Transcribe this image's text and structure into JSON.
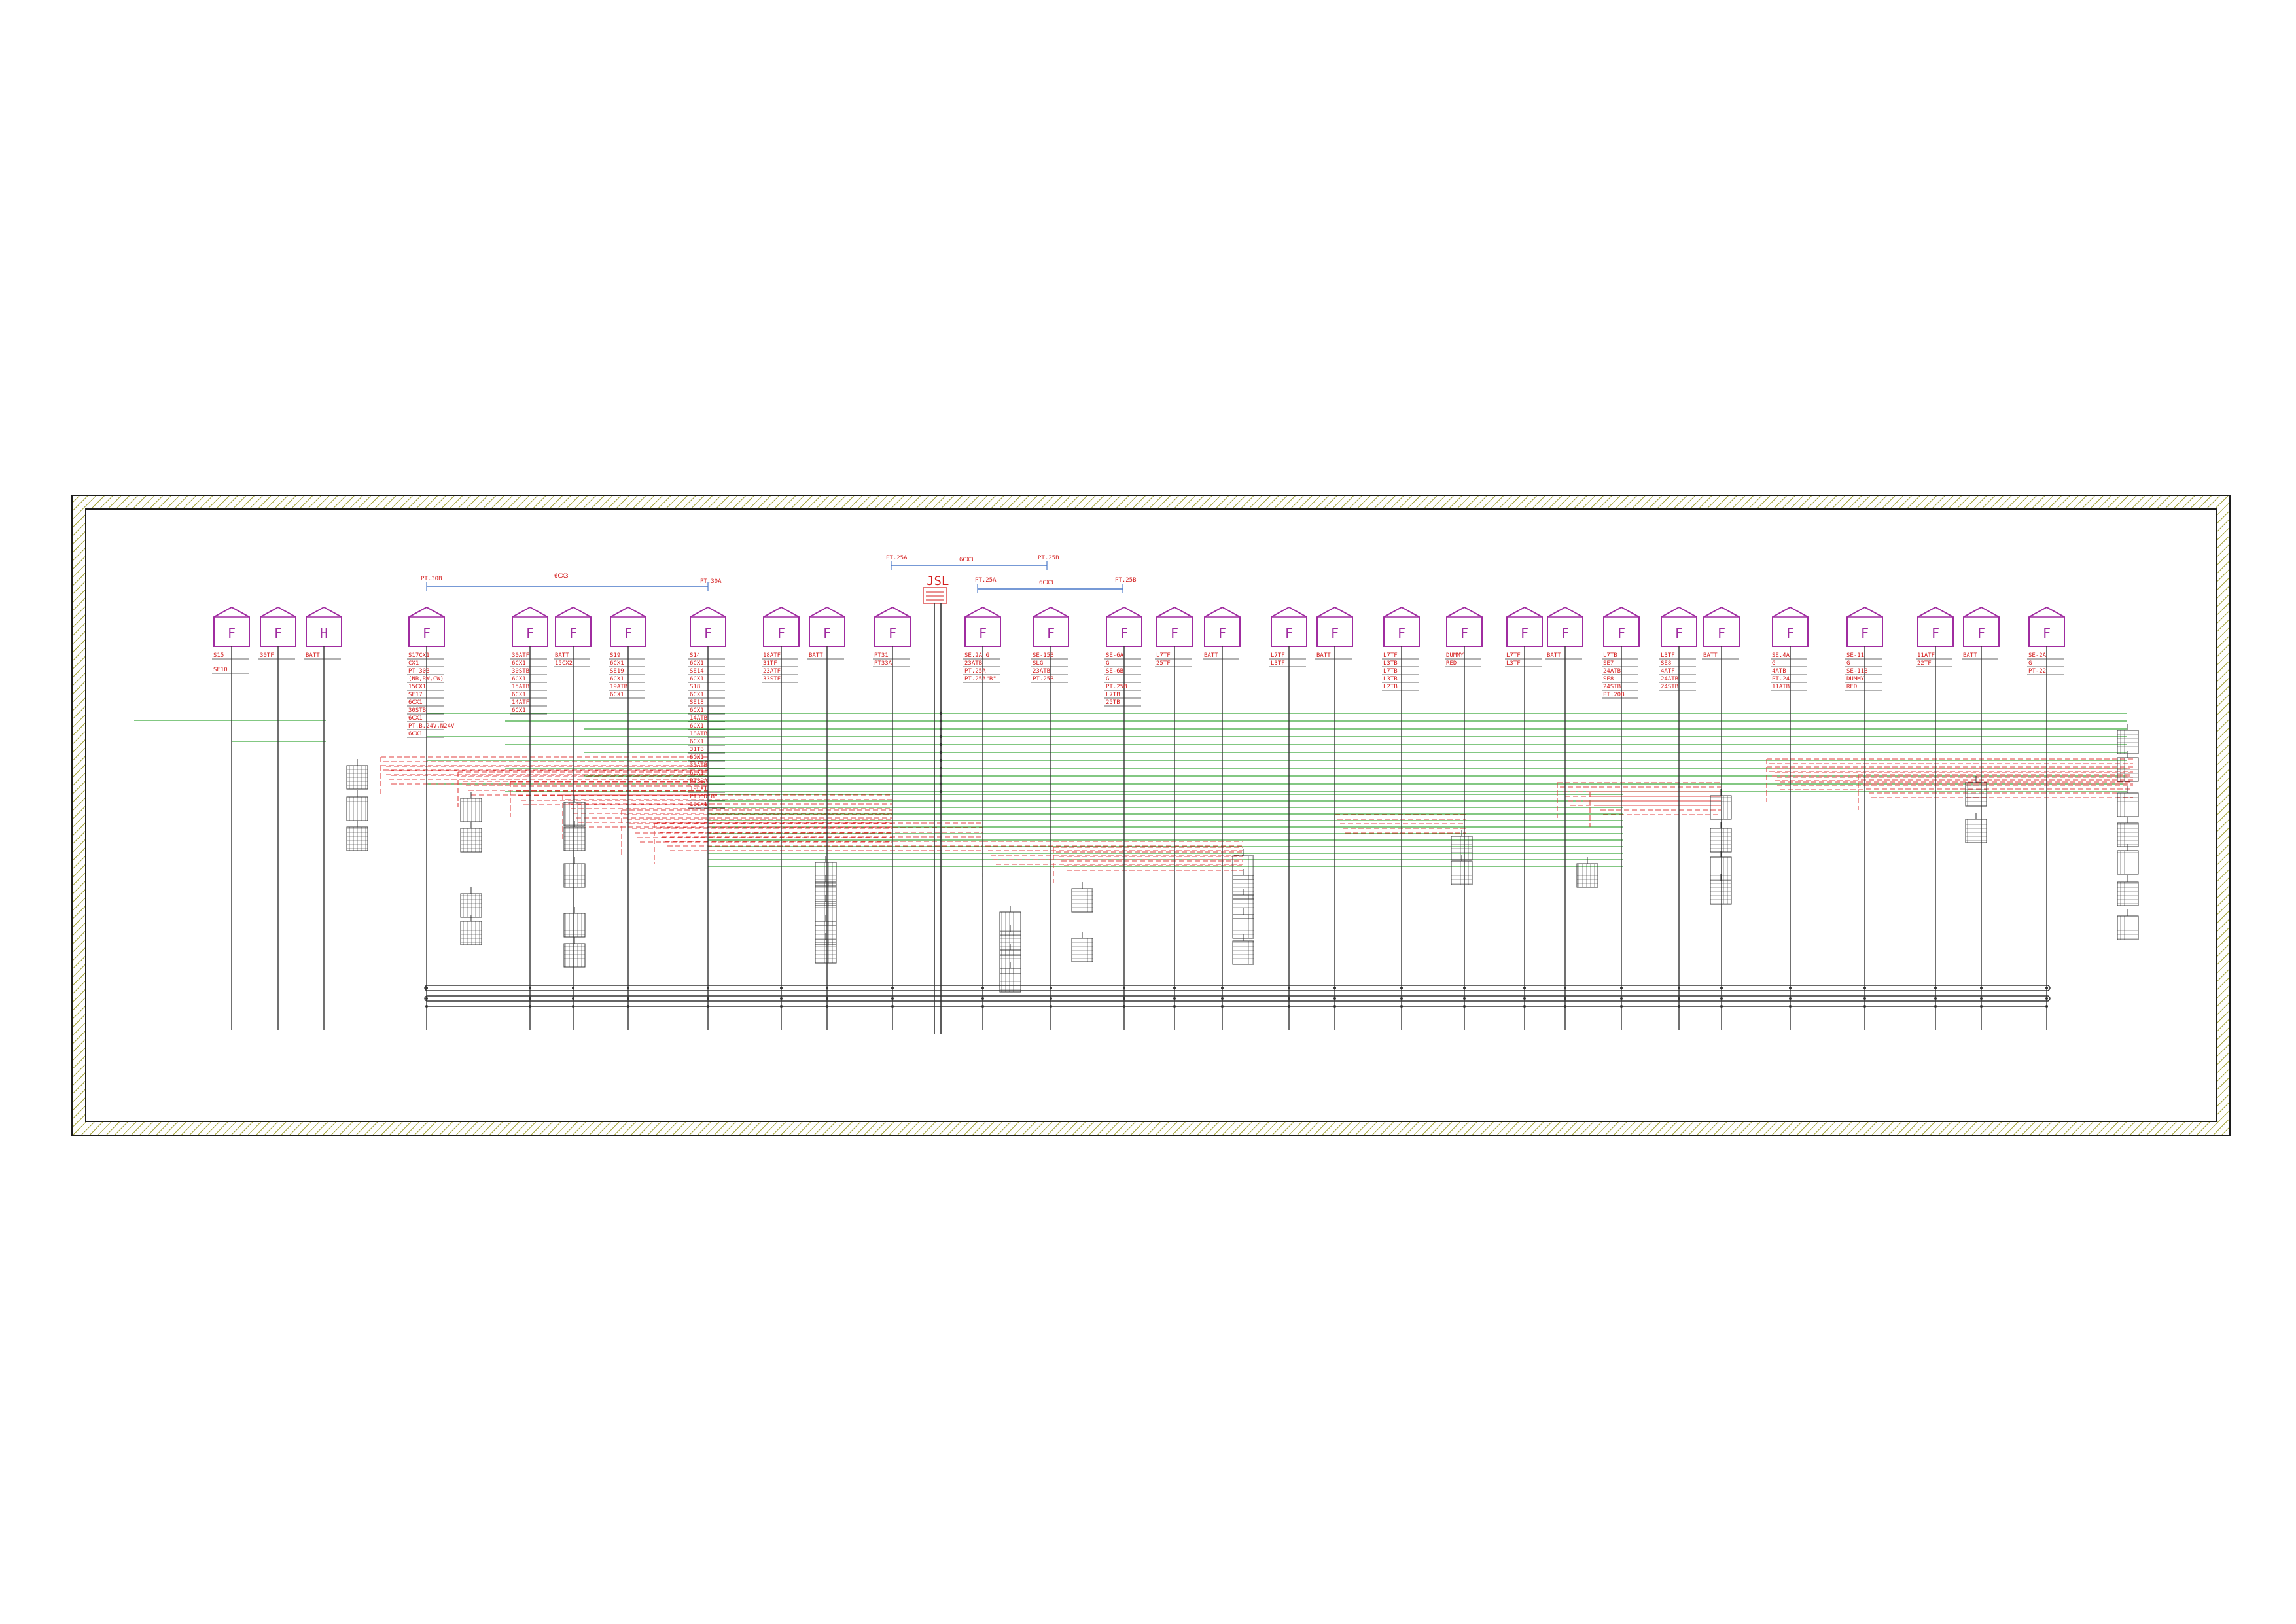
{
  "colors": {
    "frame": "#1c1c1c",
    "hatch": "#9c9c2a",
    "label": "#d42020",
    "symbol": "#a02ca0",
    "bus_signal": "#39a639",
    "return_wire": "#e14040",
    "header_line": "#4a78c8"
  },
  "icons": {
    "enclosure": "pentagon-house-outline",
    "block": "small-table-grid"
  },
  "headers": [
    {
      "left": "PT.30B",
      "mid": "6CX3",
      "right": "PT.30A"
    },
    {
      "left": "PT.25A",
      "mid": "6CX3",
      "right": "PT.25B"
    },
    {
      "left": "PT.25A",
      "mid": "6CX3",
      "right": "PT.25B"
    }
  ],
  "jsl": {
    "title": "JSL"
  },
  "columns": [
    {
      "letter": "F",
      "labels": [
        "S15",
        "",
        "SE10"
      ]
    },
    {
      "letter": "F",
      "labels": [
        "30TF"
      ]
    },
    {
      "letter": "H",
      "labels": [
        "BATT"
      ]
    },
    {
      "letter": "F",
      "labels": [
        "S17CX1",
        "CX1",
        "PT 30B",
        "(NR,RW,CW)",
        "15CX1",
        "SE17",
        "6CX1",
        "30STB",
        "6CX1",
        "PT.B.24V,N24V",
        "6CX1"
      ]
    },
    {
      "letter": "F",
      "labels": [
        "30ATF",
        "6CX1",
        "30STB",
        "6CX1",
        "15ATB",
        "6CX1",
        "14ATF",
        "6CX1"
      ]
    },
    {
      "letter": "F",
      "labels": [
        "BATT",
        "15CX2"
      ]
    },
    {
      "letter": "F",
      "labels": [
        "S19",
        "6CX1",
        "SE19",
        "6CX1",
        "19ATB",
        "6CX1"
      ]
    },
    {
      "letter": "F",
      "labels": [
        "S14",
        "6CX1",
        "SE14",
        "6CX1",
        "S18",
        "6CX1",
        "SE18",
        "6CX1",
        "14ATB",
        "6CX1",
        "18ATB",
        "6CX1",
        "31TB",
        "6CX1",
        "30ATB",
        "6CX1",
        "PT30A",
        "19CX1",
        "PT30D\"B\"",
        "19CX1"
      ]
    },
    {
      "letter": "F",
      "labels": [
        "18ATF",
        "31TF",
        "23ATF",
        "33STF"
      ]
    },
    {
      "letter": "F",
      "labels": [
        "BATT"
      ]
    },
    {
      "letter": "F",
      "labels": [
        "PT31",
        "PT33A"
      ]
    },
    {
      "letter": "F",
      "labels": [
        "SE.2A_G",
        "23ATB",
        "PT.25A",
        "PT.25A\"B\""
      ]
    },
    {
      "letter": "F",
      "labels": [
        "SE-15B",
        "SLG",
        "23ATB",
        "PT.25B"
      ]
    },
    {
      "letter": "F",
      "labels": [
        "SE-6A",
        "G",
        "SE-6B",
        "G",
        "PT.25B",
        "L7TB",
        "25TB"
      ]
    },
    {
      "letter": "F",
      "labels": [
        "L7TF",
        "25TF"
      ]
    },
    {
      "letter": "F",
      "labels": [
        "BATT"
      ]
    },
    {
      "letter": "F",
      "labels": [
        "L7TF",
        "L3TF"
      ]
    },
    {
      "letter": "F",
      "labels": [
        "BATT"
      ]
    },
    {
      "letter": "F",
      "labels": [
        "L7TF",
        "L3TB",
        "L7TB",
        "L3TB",
        "L2TB"
      ]
    },
    {
      "letter": "F",
      "labels": [
        "DUMMY",
        "RED"
      ]
    },
    {
      "letter": "F",
      "labels": [
        "L7TF",
        "L3TF"
      ]
    },
    {
      "letter": "F",
      "labels": [
        "BATT"
      ]
    },
    {
      "letter": "F",
      "labels": [
        "L7TB",
        "SE7",
        "24ATB",
        "SE8",
        "24STB",
        "PT.20B"
      ]
    },
    {
      "letter": "F",
      "labels": [
        "L3TF",
        "SE8",
        "4ATF",
        "24ATB",
        "24STB"
      ]
    },
    {
      "letter": "F",
      "labels": [
        "BATT"
      ]
    },
    {
      "letter": "F",
      "labels": [
        "SE.4A",
        "G",
        "4ATB",
        "PT.24",
        "11ATB"
      ]
    },
    {
      "letter": "F",
      "labels": [
        "SE-11",
        "G",
        "SE-11B",
        "DUMMY",
        "RED"
      ]
    },
    {
      "letter": "F",
      "labels": [
        "11ATF",
        "22TF"
      ]
    },
    {
      "letter": "F",
      "labels": [
        "BATT"
      ]
    },
    {
      "letter": "F",
      "labels": [
        "SE-2A",
        "G",
        "PT-22"
      ]
    }
  ]
}
